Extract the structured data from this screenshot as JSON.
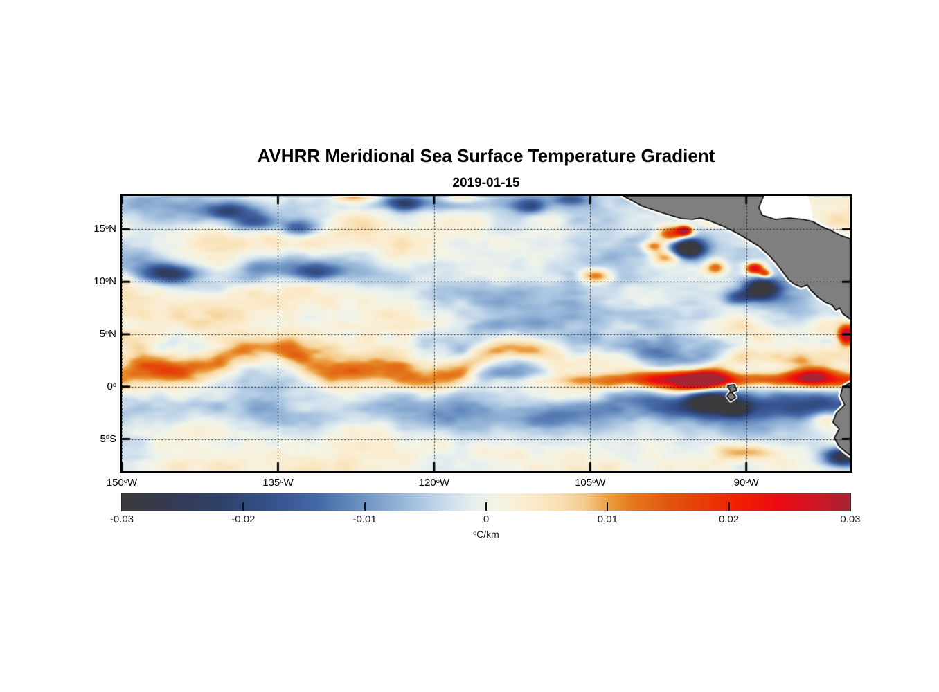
{
  "chart_data": {
    "type": "heatmap",
    "title": "AVHRR Meridional Sea Surface Temperature Gradient",
    "subtitle": "2019-01-15",
    "lon_range": [
      -150,
      -80
    ],
    "lat_range": [
      -8.0,
      18.2
    ],
    "x_axis": {
      "ticks": [
        {
          "v": -150,
          "text": "150",
          "sup": "o",
          "suffix": "W"
        },
        {
          "v": -135,
          "text": "135",
          "sup": "o",
          "suffix": "W"
        },
        {
          "v": -120,
          "text": "120",
          "sup": "o",
          "suffix": "W"
        },
        {
          "v": -105,
          "text": "105",
          "sup": "o",
          "suffix": "W"
        },
        {
          "v": -90,
          "text": "90",
          "sup": "o",
          "suffix": "W"
        }
      ]
    },
    "y_axis": {
      "ticks": [
        {
          "v": 15,
          "text": "15",
          "sup": "o",
          "suffix": "N"
        },
        {
          "v": 10,
          "text": "10",
          "sup": "o",
          "suffix": "N"
        },
        {
          "v": 5,
          "text": "5",
          "sup": "o",
          "suffix": "N"
        },
        {
          "v": 0,
          "text": "0",
          "sup": "o",
          "suffix": ""
        },
        {
          "v": -5,
          "text": "5",
          "sup": "o",
          "suffix": "S"
        }
      ]
    },
    "colorbar": {
      "min": -0.03,
      "max": 0.03,
      "tick_values": [
        -0.03,
        -0.02,
        -0.01,
        0,
        0.01,
        0.02,
        0.03
      ],
      "tick_labels": [
        "-0.03",
        "-0.02",
        "-0.01",
        "0",
        "0.01",
        "0.02",
        "0.03"
      ],
      "inner_tick_values": [
        -0.02,
        -0.01,
        0,
        0.01,
        0.02
      ],
      "unit_sup": "o",
      "unit_text": "C/km"
    },
    "colormap": [
      [
        -0.03,
        "#3b3b3d"
      ],
      [
        -0.026,
        "#343a52"
      ],
      [
        -0.022,
        "#2f4068"
      ],
      [
        -0.018,
        "#35508a"
      ],
      [
        -0.014,
        "#4467a6"
      ],
      [
        -0.01,
        "#6f94c4"
      ],
      [
        -0.006,
        "#a3c0de"
      ],
      [
        -0.003,
        "#cfdfec"
      ],
      [
        -0.001,
        "#e6efee"
      ],
      [
        0.0,
        "#eef3ea"
      ],
      [
        0.001,
        "#f5f3e4"
      ],
      [
        0.003,
        "#faeed3"
      ],
      [
        0.006,
        "#f9e0b4"
      ],
      [
        0.008,
        "#f3cd90"
      ],
      [
        0.01,
        "#ec9e41"
      ],
      [
        0.012,
        "#e47a1e"
      ],
      [
        0.015,
        "#e2560e"
      ],
      [
        0.018,
        "#e93a07"
      ],
      [
        0.021,
        "#f21d04"
      ],
      [
        0.024,
        "#ec0b10"
      ],
      [
        0.027,
        "#d11424"
      ],
      [
        0.03,
        "#a42534"
      ]
    ],
    "land": {
      "fill": "#7f7f7f",
      "outline": "#000000",
      "halo": "#ffffff",
      "no_data_fill": "#ffffff",
      "central_america": [
        [
          -101.83,
          18.2
        ],
        [
          -99.97,
          17.21
        ],
        [
          -97.97,
          16.55
        ],
        [
          -96.18,
          16.02
        ],
        [
          -95.18,
          15.96
        ],
        [
          -94.38,
          16.09
        ],
        [
          -93.52,
          15.82
        ],
        [
          -92.19,
          15.3
        ],
        [
          -90.86,
          14.64
        ],
        [
          -89.73,
          13.98
        ],
        [
          -88.86,
          13.45
        ],
        [
          -88.0,
          12.72
        ],
        [
          -87.2,
          11.86
        ],
        [
          -86.53,
          11.01
        ],
        [
          -86.0,
          10.28
        ],
        [
          -85.47,
          9.82
        ],
        [
          -84.74,
          9.49
        ],
        [
          -84.14,
          9.69
        ],
        [
          -83.81,
          9.22
        ],
        [
          -83.14,
          8.56
        ],
        [
          -82.41,
          8.04
        ],
        [
          -81.74,
          7.77
        ],
        [
          -81.41,
          7.31
        ],
        [
          -81.01,
          7.51
        ],
        [
          -80.75,
          6.98
        ],
        [
          -80.02,
          6.45
        ],
        [
          -80.02,
          14.11
        ],
        [
          -80.95,
          14.44
        ],
        [
          -81.88,
          14.9
        ],
        [
          -82.81,
          15.3
        ],
        [
          -83.61,
          15.76
        ],
        [
          -84.54,
          15.96
        ],
        [
          -85.87,
          16.09
        ],
        [
          -87.2,
          15.96
        ],
        [
          -88.46,
          16.35
        ],
        [
          -88.8,
          17.08
        ],
        [
          -88.33,
          18.2
        ]
      ],
      "honduras_gulf_nodata": [
        [
          -88.33,
          18.2
        ],
        [
          -88.8,
          17.08
        ],
        [
          -88.46,
          16.35
        ],
        [
          -87.2,
          15.96
        ],
        [
          -85.87,
          16.09
        ],
        [
          -84.54,
          15.96
        ],
        [
          -83.88,
          15.89
        ],
        [
          -83.61,
          16.35
        ],
        [
          -84.07,
          18.2
        ]
      ],
      "south_america": [
        [
          -80.02,
          0.38
        ],
        [
          -80.75,
          -0.08
        ],
        [
          -80.95,
          -0.87
        ],
        [
          -80.55,
          -1.73
        ],
        [
          -81.35,
          -2.52
        ],
        [
          -81.68,
          -3.38
        ],
        [
          -81.08,
          -4.04
        ],
        [
          -81.55,
          -4.9
        ],
        [
          -81.08,
          -5.69
        ],
        [
          -80.55,
          -6.15
        ],
        [
          -80.02,
          -6.55
        ]
      ],
      "galapagos": [
        [
          -91.8,
          0.1
        ],
        [
          -91.15,
          0.2
        ],
        [
          -90.9,
          -0.35
        ],
        [
          -91.4,
          -0.55
        ],
        [
          -91.0,
          -1.0
        ],
        [
          -91.5,
          -1.35
        ],
        [
          -91.85,
          -0.9
        ],
        [
          -91.5,
          -0.45
        ]
      ]
    },
    "field": {
      "seed": 12345,
      "bands": [
        {
          "lat": 2.1,
          "sigma": 1.35,
          "amp": 0.0135,
          "meander": [
            1.15,
            0.24,
            2.9,
            0.65,
            0.55,
            1.1
          ]
        },
        {
          "lat": 0.7,
          "sigma": 0.85,
          "amp": 0.021,
          "ramp": [
            -107,
            2.5
          ]
        },
        {
          "lat": -2.4,
          "sigma": 1.7,
          "amp": -0.0065,
          "meander": [
            0.6,
            0.3,
            0.5
          ]
        },
        {
          "lat": -1.8,
          "sigma": 1.1,
          "amp": -0.009,
          "ramp": [
            -99,
            3
          ]
        },
        {
          "lat": 11.1,
          "sigma": 1.6,
          "amp": -0.0105,
          "meander": [
            0.8,
            0.35,
            4.0
          ],
          "ramp": [
            -124,
            -4
          ]
        },
        {
          "lat": 16.8,
          "sigma": 1.4,
          "amp": -0.009,
          "window": [
            -140,
            7
          ]
        },
        {
          "lat": 17.6,
          "sigma": 1.0,
          "amp": -0.011,
          "window": [
            -120,
            9
          ]
        },
        {
          "lat": 5.4,
          "sigma": 1.2,
          "amp": 0.0075,
          "ramp": [
            -104,
            3
          ]
        }
      ],
      "eddies": [
        [
          -97.2,
          14.6,
          1.4,
          0.75,
          0.024
        ],
        [
          -98.9,
          13.4,
          1.1,
          0.6,
          0.018
        ],
        [
          -95.9,
          14.9,
          0.7,
          0.45,
          0.03
        ],
        [
          -95.6,
          13.2,
          1.35,
          0.8,
          -0.034
        ],
        [
          -97.8,
          12.4,
          1.4,
          0.7,
          0.016
        ],
        [
          -93.0,
          11.4,
          1.1,
          0.7,
          0.018
        ],
        [
          -104.5,
          10.6,
          1.5,
          0.7,
          0.02
        ],
        [
          -89.2,
          11.3,
          0.85,
          0.55,
          0.03
        ],
        [
          -88.2,
          10.8,
          0.6,
          0.4,
          0.022
        ],
        [
          -88.6,
          9.3,
          1.7,
          0.95,
          -0.034
        ],
        [
          -90.8,
          8.5,
          1.4,
          0.7,
          -0.016
        ],
        [
          -93.6,
          -1.4,
          2.3,
          0.95,
          -0.028
        ],
        [
          -91.2,
          -2.1,
          1.4,
          0.7,
          -0.018
        ],
        [
          -94.0,
          0.6,
          2.6,
          0.75,
          0.02
        ],
        [
          -84.0,
          1.0,
          2.0,
          0.8,
          0.018
        ],
        [
          -80.4,
          4.9,
          0.8,
          0.9,
          0.03
        ],
        [
          -80.7,
          -6.7,
          1.8,
          0.9,
          -0.028
        ],
        [
          -82.5,
          -3.0,
          1.5,
          0.8,
          0.012
        ],
        [
          -90.0,
          -6.2,
          3.0,
          0.8,
          0.011
        ],
        [
          -137.2,
          15.7,
          2.2,
          0.9,
          -0.016
        ],
        [
          -140.0,
          16.8,
          2.0,
          0.7,
          -0.014
        ],
        [
          -133.0,
          15.2,
          1.8,
          0.8,
          -0.014
        ],
        [
          -145.6,
          10.8,
          2.6,
          0.8,
          -0.018
        ],
        [
          -131.5,
          10.9,
          2.2,
          0.8,
          -0.015
        ],
        [
          -122.8,
          17.6,
          1.8,
          0.7,
          -0.016
        ],
        [
          -111.0,
          17.2,
          1.6,
          0.7,
          -0.014
        ],
        [
          -106.8,
          17.9,
          1.5,
          0.6,
          -0.012
        ],
        [
          -127.5,
          18.1,
          2.0,
          0.6,
          0.012
        ],
        [
          -117.5,
          18.0,
          2.2,
          0.55,
          0.011
        ],
        [
          -93.0,
          16.0,
          1.2,
          0.6,
          0.014
        ]
      ],
      "noise": [
        {
          "scale": 150,
          "amp": 0.005,
          "stretch": 2.4,
          "seed": 7
        },
        {
          "scale": 75,
          "amp": 0.0046,
          "stretch": 2.2,
          "seed": 31
        },
        {
          "scale": 36,
          "amp": 0.0034,
          "stretch": 1.9,
          "seed": 73
        },
        {
          "scale": 17,
          "amp": 0.0017,
          "stretch": 1.6,
          "seed": 113
        },
        {
          "scale": 7,
          "amp": 0.0008,
          "stretch": 2.5,
          "seed": 151
        }
      ],
      "noise_mask": {
        "lat": 3.0,
        "sigma": 3.5,
        "gain": 0.5
      }
    },
    "grid": {
      "color": "rgba(10,10,10,0.85)",
      "dash": [
        1.5,
        3.3
      ]
    },
    "axis": {
      "tick_len": 11,
      "tick_width": 3,
      "color": "#000000"
    }
  }
}
